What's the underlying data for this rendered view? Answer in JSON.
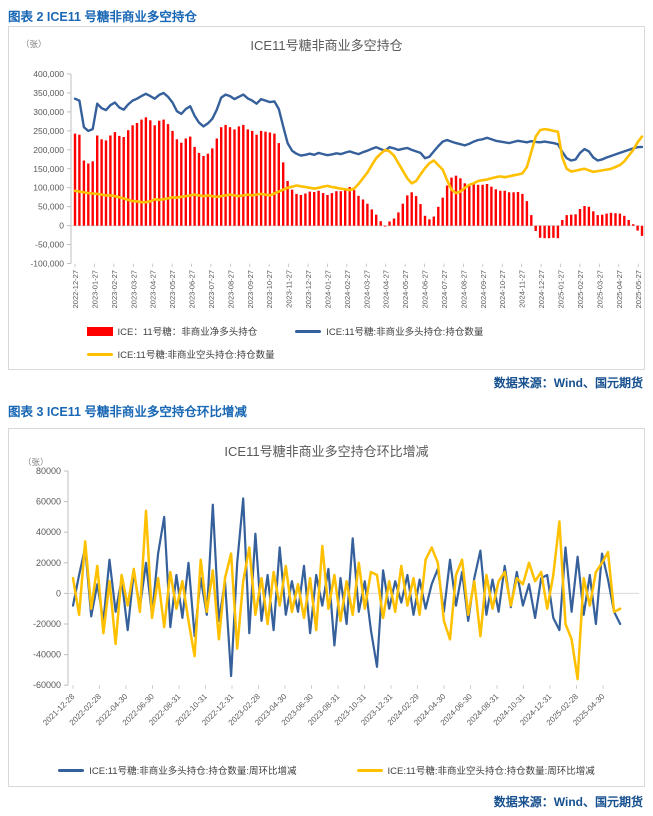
{
  "captions": {
    "fig2": "图表 2 ICE11 号糖非商业多空持仓",
    "fig3": "图表 3 ICE11 号糖非商业多空持仓环比增减"
  },
  "source_note": "数据来源：Wind、国元期货",
  "chart_data": [
    {
      "type": "bar+line",
      "title": "ICE11号糖非商业多空持仓",
      "unit": "（张）",
      "ylim": [
        -100000,
        400000
      ],
      "ytick_labels": [
        "400,000",
        "350,000",
        "300,000",
        "250,000",
        "200,000",
        "150,000",
        "100,000",
        "50,000",
        "0",
        "-50,000",
        "-100,000"
      ],
      "xtick_labels": [
        "2022-12-27",
        "2023-01-27",
        "2023-02-27",
        "2023-03-27",
        "2023-04-27",
        "2023-05-27",
        "2023-06-27",
        "2023-07-27",
        "2023-08-27",
        "2023-09-27",
        "2023-10-27",
        "2023-11-27",
        "2023-12-27",
        "2024-01-27",
        "2024-02-27",
        "2024-03-27",
        "2024-04-27",
        "2024-05-27",
        "2024-06-27",
        "2024-07-27",
        "2024-08-27",
        "2024-09-27",
        "2024-10-27",
        "2024-11-27",
        "2024-12-27",
        "2025-01-27",
        "2025-02-27",
        "2025-03-27",
        "2025-04-27",
        "2025-05-27"
      ],
      "frequency": "weekly",
      "net_bar_formula": "long_values - short_values",
      "series": [
        {
          "name": "ICE：11号糖：非商业净多头持仓",
          "type": "bar",
          "color": "#FF0000",
          "derived_from": "long - short"
        },
        {
          "name": "ICE:11号糖:非商业多头持仓:持仓数量",
          "key": "long",
          "type": "line",
          "color": "#35609B",
          "values": [
            335000,
            330000,
            260000,
            250000,
            255000,
            322000,
            310000,
            305000,
            318000,
            325000,
            312000,
            306000,
            320000,
            330000,
            335000,
            342000,
            348000,
            342000,
            335000,
            345000,
            350000,
            340000,
            325000,
            302000,
            295000,
            308000,
            315000,
            290000,
            272000,
            262000,
            270000,
            282000,
            306000,
            338000,
            346000,
            342000,
            334000,
            340000,
            346000,
            336000,
            330000,
            322000,
            334000,
            330000,
            326000,
            328000,
            308000,
            262000,
            218000,
            198000,
            190000,
            185000,
            187000,
            190000,
            187000,
            192000,
            189000,
            186000,
            188000,
            191000,
            189000,
            193000,
            196000,
            192000,
            189000,
            194000,
            198000,
            203000,
            207000,
            202000,
            198000,
            207000,
            204000,
            200000,
            203000,
            205000,
            200000,
            196000,
            192000,
            178000,
            182000,
            196000,
            210000,
            222000,
            226000,
            222000,
            218000,
            215000,
            212000,
            216000,
            222000,
            226000,
            228000,
            232000,
            228000,
            224000,
            222000,
            220000,
            218000,
            221000,
            224000,
            222000,
            220000,
            223000,
            221000,
            220000,
            222000,
            220000,
            218000,
            215000,
            195000,
            178000,
            172000,
            175000,
            192000,
            202000,
            196000,
            180000,
            172000,
            175000,
            180000,
            184000,
            188000,
            192000,
            196000,
            200000,
            204000,
            207000,
            208000
          ]
        },
        {
          "name": "ICE:11号糖:非商业空头持仓:持仓数量",
          "key": "short",
          "type": "line",
          "color": "#FFC000",
          "values": [
            92000,
            90000,
            88000,
            86000,
            85000,
            84000,
            82000,
            80000,
            80000,
            78000,
            75000,
            72000,
            68000,
            65000,
            64000,
            62000,
            62000,
            64000,
            70000,
            68000,
            70000,
            72000,
            75000,
            74000,
            76000,
            78000,
            80000,
            82000,
            80000,
            78000,
            80000,
            78000,
            76000,
            78000,
            80000,
            82000,
            80000,
            78000,
            80000,
            82000,
            80000,
            82000,
            84000,
            82000,
            80000,
            85000,
            90000,
            95000,
            100000,
            103000,
            106000,
            104000,
            102000,
            100000,
            98000,
            100000,
            103000,
            105000,
            102000,
            100000,
            98000,
            96000,
            94000,
            98000,
            110000,
            125000,
            140000,
            160000,
            178000,
            190000,
            200000,
            196000,
            185000,
            165000,
            145000,
            125000,
            112000,
            118000,
            135000,
            152000,
            165000,
            172000,
            160000,
            148000,
            120000,
            95000,
            86000,
            90000,
            100000,
            108000,
            112000,
            118000,
            120000,
            122000,
            125000,
            128000,
            130000,
            128000,
            130000,
            133000,
            135000,
            138000,
            155000,
            195000,
            235000,
            252000,
            255000,
            253000,
            250000,
            248000,
            180000,
            150000,
            143000,
            145000,
            148000,
            150000,
            146000,
            142000,
            144000,
            146000,
            148000,
            150000,
            155000,
            160000,
            170000,
            185000,
            200000,
            220000,
            235000
          ]
        }
      ]
    },
    {
      "type": "line",
      "title": "ICE11号糖非商业多空持仓环比增减",
      "unit": "（张）",
      "ylim": [
        -60000,
        80000
      ],
      "ytick_labels": [
        "80000",
        "60000",
        "40000",
        "20000",
        "0",
        "-20000",
        "-40000",
        "-60000"
      ],
      "xtick_labels": [
        "2021-12-28",
        "2022-02-28",
        "2022-04-30",
        "2022-06-30",
        "2022-08-31",
        "2022-10-31",
        "2022-12-31",
        "2023-02-28",
        "2023-04-30",
        "2023-06-30",
        "2023-08-31",
        "2023-10-31",
        "2023-12-31",
        "2024-02-29",
        "2024-04-30",
        "2024-06-30",
        "2024-08-31",
        "2024-10-31",
        "2024-12-31",
        "2025-02-28",
        "2025-04-30"
      ],
      "frequency": "weekly-change (approximated)",
      "series": [
        {
          "name": "ICE:11号糖:非商业多头持仓:持仓数量:周环比增减",
          "type": "line",
          "color": "#35609B",
          "values": [
            -8000,
            12000,
            30000,
            -15000,
            6000,
            -18000,
            22000,
            -12000,
            9000,
            -24000,
            14000,
            -9000,
            20000,
            -14000,
            26000,
            50000,
            -22000,
            12000,
            -16000,
            20000,
            -28000,
            10000,
            -14000,
            58000,
            -18000,
            8000,
            -54000,
            20000,
            62000,
            -26000,
            39000,
            -18000,
            12000,
            -24000,
            30000,
            -14000,
            8000,
            -12000,
            18000,
            -26000,
            12000,
            -8000,
            16000,
            -34000,
            10000,
            -20000,
            36000,
            -12000,
            8000,
            -24000,
            -48000,
            15000,
            -10000,
            8000,
            -6000,
            12000,
            -14000,
            9000,
            -10000,
            6000,
            16000,
            -12000,
            22000,
            -8000,
            14000,
            -18000,
            10000,
            28000,
            -14000,
            9000,
            -12000,
            18000,
            -9000,
            14000,
            -8000,
            6000,
            -16000,
            10000,
            12000,
            -16000,
            -24000,
            30000,
            -12000,
            24000,
            -14000,
            12000,
            -20000,
            26000,
            9000,
            -12000,
            -20000
          ]
        },
        {
          "name": "ICE:11号糖:非商业空头持仓:持仓数量:周环比增减",
          "type": "line",
          "color": "#FFC000",
          "values": [
            10000,
            -14000,
            34000,
            -10000,
            18000,
            -26000,
            8000,
            -33000,
            12000,
            -8000,
            16000,
            -12000,
            54000,
            -16000,
            10000,
            -22000,
            14000,
            -10000,
            8000,
            -18000,
            -41000,
            22000,
            -12000,
            15000,
            -30000,
            10000,
            26000,
            -36000,
            8000,
            30000,
            -14000,
            10000,
            -20000,
            14000,
            -8000,
            18000,
            -12000,
            6000,
            -16000,
            10000,
            -24000,
            31000,
            -10000,
            12000,
            -18000,
            8000,
            -14000,
            20000,
            -10000,
            14000,
            12000,
            -16000,
            8000,
            -12000,
            18000,
            -8000,
            10000,
            -14000,
            22000,
            30000,
            20000,
            -18000,
            -30000,
            12000,
            22000,
            -14000,
            8000,
            -28000,
            12000,
            -10000,
            8000,
            14000,
            -8000,
            10000,
            6000,
            20000,
            8000,
            14000,
            -10000,
            12000,
            47000,
            -20000,
            -30000,
            -56000,
            10000,
            -8000,
            14000,
            20000,
            27000,
            -12000,
            -10000
          ]
        }
      ]
    }
  ]
}
